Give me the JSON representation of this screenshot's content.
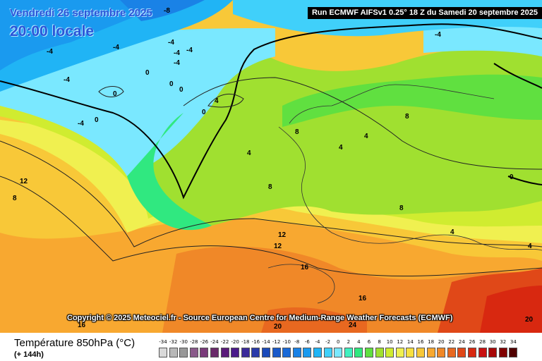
{
  "header": {
    "date_title": "Vendredi 26 septembre 2025",
    "time_title": "20:00 locale",
    "run_banner": "Run ECMWF AIFSv1 0.25° 18 Z du Samedi 20 septembre 2025"
  },
  "copyright": "Copyright © 2025 Meteociel.fr - Source European Centre for Medium-Range Weather Forecasts (ECMWF)",
  "legend": {
    "title": "Température 850hPa (°C)",
    "subtitle": "(+ 144h)",
    "scale_values": [
      "-34",
      "-32",
      "-30",
      "-28",
      "-26",
      "-24",
      "-22",
      "-20",
      "-18",
      "-16",
      "-14",
      "-12",
      "-10",
      "-8",
      "-6",
      "-4",
      "-2",
      "0",
      "2",
      "4",
      "6",
      "8",
      "10",
      "12",
      "14",
      "16",
      "18",
      "20",
      "22",
      "24",
      "26",
      "28",
      "30",
      "32",
      "34"
    ],
    "scale_colors": [
      "#d9d9d9",
      "#b8b8b8",
      "#989898",
      "#8a5a8a",
      "#7a3a7a",
      "#6a2a6a",
      "#5a1a7a",
      "#4a1a8a",
      "#3a2a9a",
      "#2a3aaa",
      "#1a4aba",
      "#1a5aca",
      "#1a6ad8",
      "#1a82e6",
      "#1a9aef",
      "#20b4f5",
      "#40d0fa",
      "#7ae8ff",
      "#40f0c0",
      "#30e880",
      "#60e040",
      "#a0e030",
      "#d0ec30",
      "#f0f050",
      "#f8e040",
      "#f8c838",
      "#f8a830",
      "#f08828",
      "#e86820",
      "#e04818",
      "#d82810",
      "#c81010",
      "#a80808",
      "#800000",
      "#500000"
    ]
  },
  "map": {
    "isotherm_labels": [
      "-8",
      "-4",
      "-4",
      "-4",
      "-4",
      "-4",
      "-4",
      "-4",
      "-4",
      "-4",
      "0",
      "0",
      "0",
      "0",
      "0",
      "0",
      "0",
      "4",
      "4",
      "4",
      "4",
      "4",
      "4",
      "8",
      "8",
      "8",
      "8",
      "8",
      "12",
      "12",
      "12",
      "16",
      "16",
      "16",
      "20",
      "24",
      "20"
    ]
  }
}
